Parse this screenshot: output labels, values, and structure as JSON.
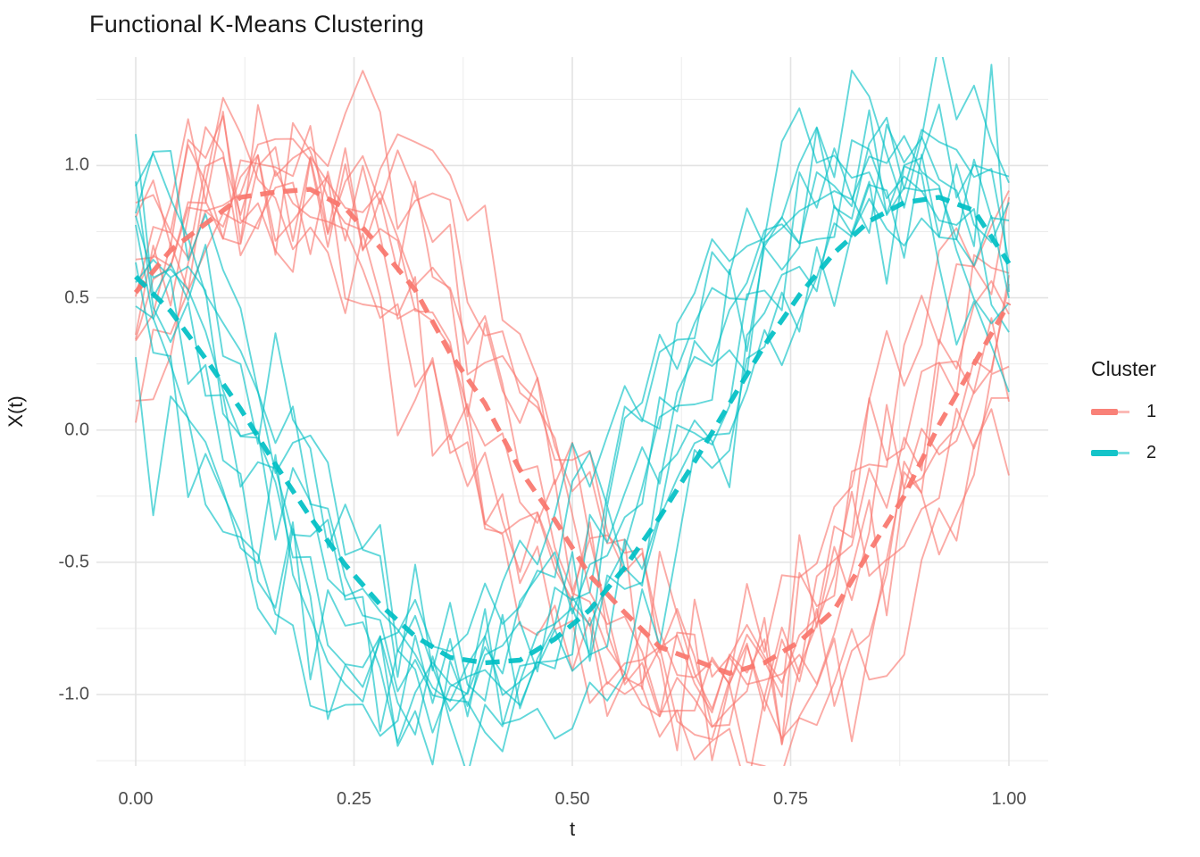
{
  "chart_data": {
    "type": "line",
    "title": "Functional K-Means Clustering",
    "xlabel": "t",
    "ylabel": "X(t)",
    "x_ticks": [
      {
        "value": 0.0,
        "label": "0.00"
      },
      {
        "value": 0.25,
        "label": "0.25"
      },
      {
        "value": 0.5,
        "label": "0.50"
      },
      {
        "value": 0.75,
        "label": "0.75"
      },
      {
        "value": 1.0,
        "label": "1.00"
      }
    ],
    "y_ticks": [
      {
        "value": 1.0,
        "label": "1.0"
      },
      {
        "value": 0.5,
        "label": "0.5"
      },
      {
        "value": 0.0,
        "label": "0.0"
      },
      {
        "value": -0.5,
        "label": "-0.5"
      },
      {
        "value": -1.0,
        "label": "-1.0"
      }
    ],
    "xlim": [
      -0.045,
      1.045
    ],
    "ylim": [
      -1.27,
      1.41
    ],
    "grid": {
      "on": true,
      "major_color": "#e3e3e3",
      "minor_color": "#ececec",
      "x_minor": [
        0.125,
        0.375,
        0.625,
        0.875
      ],
      "y_minor": [
        -1.25,
        -0.75,
        -0.25,
        0.25,
        0.75,
        1.25
      ]
    },
    "legend": {
      "title": "Cluster",
      "position": "right",
      "entries": [
        {
          "label": "1",
          "color": "#F8766D"
        },
        {
          "label": "2",
          "color": "#00BFC4"
        }
      ]
    },
    "style": {
      "member_opacity": 0.62,
      "member_width": 1.9,
      "centroid_opacity": 0.92,
      "centroid_width": 5.4,
      "centroid_dash": "16 10",
      "background": "#ffffff"
    },
    "sampling": {
      "n_points": 51,
      "t_min": 0,
      "t_max": 1,
      "model": "amplitude*sin(2*pi*(t+phase))+noise"
    },
    "clusters": [
      {
        "label": "1",
        "color": "#F8766D",
        "noise_sd": 0.15,
        "centroid_t_start": 0,
        "centroid_t_step": 0.04,
        "centroid": [
          0.52,
          0.68,
          0.78,
          0.88,
          0.9,
          0.91,
          0.84,
          0.69,
          0.53,
          0.29,
          0.1,
          -0.15,
          -0.34,
          -0.55,
          -0.69,
          -0.82,
          -0.87,
          -0.92,
          -0.88,
          -0.8,
          -0.68,
          -0.46,
          -0.25,
          0.02,
          0.25,
          0.48
        ],
        "members": [
          {
            "phase": 0.012,
            "amplitude": 1.1,
            "seed": 101
          },
          {
            "phase": 0.026,
            "amplitude": 0.94,
            "seed": 102
          },
          {
            "phase": 0.043,
            "amplitude": 1.13,
            "seed": 103
          },
          {
            "phase": 0.058,
            "amplitude": 0.9,
            "seed": 104
          },
          {
            "phase": 0.072,
            "amplitude": 1.04,
            "seed": 105
          },
          {
            "phase": 0.088,
            "amplitude": 0.97,
            "seed": 106
          },
          {
            "phase": 0.104,
            "amplitude": 1.11,
            "seed": 107
          },
          {
            "phase": 0.121,
            "amplitude": 0.92,
            "seed": 108
          },
          {
            "phase": 0.139,
            "amplitude": 1.02,
            "seed": 109
          },
          {
            "phase": 0.156,
            "amplitude": 0.99,
            "seed": 110
          }
        ]
      },
      {
        "label": "2",
        "color": "#00BFC4",
        "noise_sd": 0.15,
        "centroid_t_start": 0,
        "centroid_t_step": 0.04,
        "centroid": [
          0.58,
          0.45,
          0.27,
          0.08,
          -0.13,
          -0.33,
          -0.51,
          -0.66,
          -0.78,
          -0.86,
          -0.88,
          -0.87,
          -0.79,
          -0.68,
          -0.52,
          -0.33,
          -0.12,
          0.1,
          0.32,
          0.51,
          0.67,
          0.79,
          0.86,
          0.88,
          0.83,
          0.63
        ],
        "members": [
          {
            "phase": 0.31,
            "amplitude": 1.07,
            "seed": 201
          },
          {
            "phase": 0.327,
            "amplitude": 0.93,
            "seed": 202
          },
          {
            "phase": 0.344,
            "amplitude": 1.12,
            "seed": 203
          },
          {
            "phase": 0.359,
            "amplitude": 0.91,
            "seed": 204
          },
          {
            "phase": 0.374,
            "amplitude": 1.03,
            "seed": 205
          },
          {
            "phase": 0.391,
            "amplitude": 1.1,
            "seed": 206
          },
          {
            "phase": 0.407,
            "amplitude": 0.95,
            "seed": 207
          },
          {
            "phase": 0.424,
            "amplitude": 1.05,
            "seed": 208
          },
          {
            "phase": 0.441,
            "amplitude": 0.9,
            "seed": 209
          },
          {
            "phase": 0.457,
            "amplitude": 1.0,
            "seed": 210
          }
        ]
      }
    ]
  }
}
